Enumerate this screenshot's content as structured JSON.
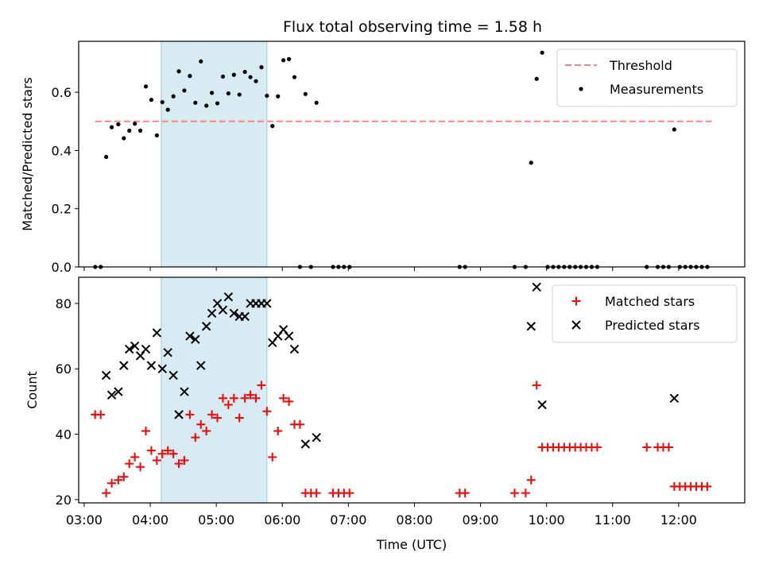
{
  "figure_title": "Flux total observing time = 1.58 h",
  "chart_data": [
    {
      "type": "scatter",
      "ylabel": "Matched/Predicted stars",
      "xlabel": "",
      "xlim": [
        "02:55",
        "13:00"
      ],
      "ylim": [
        0,
        0.775
      ],
      "yticks": [
        "0.0",
        "0.2",
        "0.4",
        "0.6"
      ],
      "highlight_span": [
        "04:10",
        "05:46"
      ],
      "legend_position": "upper right",
      "threshold": {
        "name": "Threshold",
        "value": 0.5,
        "x_start": "03:10",
        "x_end": "12:30",
        "color": "#ff8080"
      },
      "series": [
        {
          "name": "Measurements",
          "color": "#000000",
          "marker": "dot",
          "points": [
            [
              "03:10",
              0
            ],
            [
              "03:15",
              0
            ],
            [
              "03:20",
              0.378
            ],
            [
              "03:25",
              0.48
            ],
            [
              "03:31",
              0.49
            ],
            [
              "03:36",
              0.442
            ],
            [
              "03:41",
              0.468
            ],
            [
              "03:46",
              0.492
            ],
            [
              "03:51",
              0.468
            ],
            [
              "03:56",
              0.62
            ],
            [
              "04:01",
              0.574
            ],
            [
              "04:06",
              0.452
            ],
            [
              "04:11",
              0.566
            ],
            [
              "04:16",
              0.54
            ],
            [
              "04:21",
              0.586
            ],
            [
              "04:26",
              0.672
            ],
            [
              "04:31",
              0.606
            ],
            [
              "04:36",
              0.656
            ],
            [
              "04:41",
              0.564
            ],
            [
              "04:46",
              0.706
            ],
            [
              "04:51",
              0.554
            ],
            [
              "04:56",
              0.598
            ],
            [
              "05:01",
              0.562
            ],
            [
              "05:06",
              0.654
            ],
            [
              "05:11",
              0.596
            ],
            [
              "05:16",
              0.66
            ],
            [
              "05:21",
              0.592
            ],
            [
              "05:26",
              0.67
            ],
            [
              "05:31",
              0.652
            ],
            [
              "05:36",
              0.638
            ],
            [
              "05:41",
              0.686
            ],
            [
              "05:46",
              0.588
            ],
            [
              "05:51",
              0.484
            ],
            [
              "05:56",
              0.586
            ],
            [
              "06:01",
              0.71
            ],
            [
              "06:06",
              0.714
            ],
            [
              "06:11",
              0.652
            ],
            [
              "06:16",
              0
            ],
            [
              "06:21",
              0.594
            ],
            [
              "06:26",
              0
            ],
            [
              "06:31",
              0.564
            ],
            [
              "06:46",
              0
            ],
            [
              "06:51",
              0
            ],
            [
              "06:56",
              0
            ],
            [
              "07:01",
              0
            ],
            [
              "08:41",
              0
            ],
            [
              "08:46",
              0
            ],
            [
              "09:31",
              0
            ],
            [
              "09:41",
              0
            ],
            [
              "09:46",
              0.358
            ],
            [
              "09:51",
              0.646
            ],
            [
              "09:56",
              0.736
            ],
            [
              "10:01",
              0
            ],
            [
              "10:06",
              0
            ],
            [
              "10:11",
              0
            ],
            [
              "10:16",
              0
            ],
            [
              "10:21",
              0
            ],
            [
              "10:26",
              0
            ],
            [
              "10:31",
              0
            ],
            [
              "10:36",
              0
            ],
            [
              "10:41",
              0
            ],
            [
              "10:46",
              0
            ],
            [
              "11:31",
              0
            ],
            [
              "11:41",
              0
            ],
            [
              "11:46",
              0
            ],
            [
              "11:51",
              0
            ],
            [
              "11:56",
              0.472
            ],
            [
              "12:01",
              0
            ],
            [
              "12:06",
              0
            ],
            [
              "12:11",
              0
            ],
            [
              "12:16",
              0
            ],
            [
              "12:21",
              0
            ],
            [
              "12:26",
              0
            ]
          ]
        }
      ]
    },
    {
      "type": "scatter",
      "ylabel": "Count",
      "xlabel": "Time (UTC)",
      "xlim": [
        "02:55",
        "13:00"
      ],
      "ylim": [
        19,
        88
      ],
      "yticks": [
        "20",
        "40",
        "60",
        "80"
      ],
      "xticks": [
        "03:00",
        "04:00",
        "05:00",
        "06:00",
        "07:00",
        "08:00",
        "09:00",
        "10:00",
        "11:00",
        "12:00"
      ],
      "highlight_span": [
        "04:10",
        "05:46"
      ],
      "legend_position": "upper right",
      "series": [
        {
          "name": "Matched stars",
          "color": "#ff0000",
          "marker": "plus",
          "points": [
            [
              "03:10",
              46
            ],
            [
              "03:15",
              46
            ],
            [
              "03:20",
              22
            ],
            [
              "03:25",
              25
            ],
            [
              "03:31",
              26
            ],
            [
              "03:36",
              27
            ],
            [
              "03:41",
              31
            ],
            [
              "03:46",
              33
            ],
            [
              "03:51",
              30
            ],
            [
              "03:56",
              41
            ],
            [
              "04:01",
              35
            ],
            [
              "04:06",
              32
            ],
            [
              "04:11",
              34
            ],
            [
              "04:16",
              35
            ],
            [
              "04:21",
              34
            ],
            [
              "04:26",
              31
            ],
            [
              "04:31",
              32
            ],
            [
              "04:36",
              46
            ],
            [
              "04:41",
              39
            ],
            [
              "04:46",
              43
            ],
            [
              "04:51",
              41
            ],
            [
              "04:56",
              46
            ],
            [
              "05:01",
              45
            ],
            [
              "05:06",
              51
            ],
            [
              "05:11",
              49
            ],
            [
              "05:16",
              51
            ],
            [
              "05:21",
              45
            ],
            [
              "05:26",
              51
            ],
            [
              "05:31",
              52
            ],
            [
              "05:36",
              51
            ],
            [
              "05:41",
              55
            ],
            [
              "05:46",
              47
            ],
            [
              "05:51",
              33
            ],
            [
              "05:56",
              41
            ],
            [
              "06:01",
              51
            ],
            [
              "06:06",
              50
            ],
            [
              "06:11",
              43
            ],
            [
              "06:16",
              43
            ],
            [
              "06:21",
              22
            ],
            [
              "06:26",
              22
            ],
            [
              "06:31",
              22
            ],
            [
              "06:46",
              22
            ],
            [
              "06:51",
              22
            ],
            [
              "06:56",
              22
            ],
            [
              "07:01",
              22
            ],
            [
              "08:41",
              22
            ],
            [
              "08:46",
              22
            ],
            [
              "09:31",
              22
            ],
            [
              "09:41",
              22
            ],
            [
              "09:46",
              26
            ],
            [
              "09:51",
              55
            ],
            [
              "09:56",
              36
            ],
            [
              "10:01",
              36
            ],
            [
              "10:06",
              36
            ],
            [
              "10:11",
              36
            ],
            [
              "10:16",
              36
            ],
            [
              "10:21",
              36
            ],
            [
              "10:26",
              36
            ],
            [
              "10:31",
              36
            ],
            [
              "10:36",
              36
            ],
            [
              "10:41",
              36
            ],
            [
              "10:46",
              36
            ],
            [
              "11:31",
              36
            ],
            [
              "11:41",
              36
            ],
            [
              "11:46",
              36
            ],
            [
              "11:51",
              36
            ],
            [
              "11:56",
              24
            ],
            [
              "12:01",
              24
            ],
            [
              "12:06",
              24
            ],
            [
              "12:11",
              24
            ],
            [
              "12:16",
              24
            ],
            [
              "12:21",
              24
            ],
            [
              "12:26",
              24
            ]
          ]
        },
        {
          "name": "Predicted stars",
          "color": "#000000",
          "marker": "x",
          "points": [
            [
              "03:20",
              58
            ],
            [
              "03:25",
              52
            ],
            [
              "03:31",
              53
            ],
            [
              "03:36",
              61
            ],
            [
              "03:41",
              66
            ],
            [
              "03:46",
              67
            ],
            [
              "03:51",
              64
            ],
            [
              "03:56",
              66
            ],
            [
              "04:01",
              61
            ],
            [
              "04:06",
              71
            ],
            [
              "04:11",
              60
            ],
            [
              "04:16",
              65
            ],
            [
              "04:21",
              58
            ],
            [
              "04:26",
              46
            ],
            [
              "04:31",
              53
            ],
            [
              "04:36",
              70
            ],
            [
              "04:41",
              69
            ],
            [
              "04:46",
              61
            ],
            [
              "04:51",
              73
            ],
            [
              "04:56",
              77
            ],
            [
              "05:01",
              80
            ],
            [
              "05:06",
              78
            ],
            [
              "05:11",
              82
            ],
            [
              "05:16",
              77
            ],
            [
              "05:21",
              76
            ],
            [
              "05:26",
              76
            ],
            [
              "05:31",
              80
            ],
            [
              "05:36",
              80
            ],
            [
              "05:41",
              80
            ],
            [
              "05:46",
              80
            ],
            [
              "05:51",
              68
            ],
            [
              "05:56",
              70
            ],
            [
              "06:01",
              72
            ],
            [
              "06:06",
              70
            ],
            [
              "06:11",
              66
            ],
            [
              "06:21",
              37
            ],
            [
              "06:31",
              39
            ],
            [
              "09:46",
              73
            ],
            [
              "09:51",
              85
            ],
            [
              "09:56",
              49
            ],
            [
              "11:56",
              51
            ]
          ]
        }
      ]
    }
  ]
}
